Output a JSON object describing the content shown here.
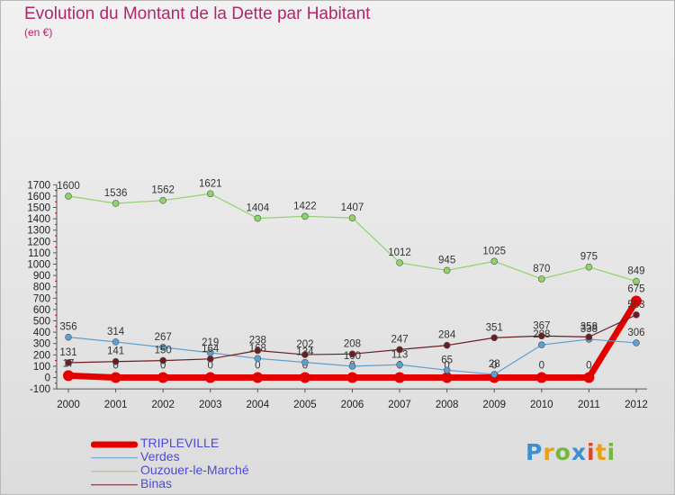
{
  "title": "Evolution du Montant de la Dette par Habitant",
  "unit": "(en €)",
  "logo_text": "Proxiti",
  "chart_data": {
    "type": "line",
    "title": "Evolution du Montant de la Dette par Habitant",
    "subtitle": "(en €)",
    "xlabel": "",
    "ylabel": "",
    "x": [
      "2000",
      "2001",
      "2002",
      "2003",
      "2004",
      "2005",
      "2006",
      "2007",
      "2008",
      "2009",
      "2010",
      "2011",
      "2012"
    ],
    "ylim": [
      -100,
      1700
    ],
    "yticks": [
      -100,
      0,
      100,
      200,
      300,
      400,
      500,
      600,
      700,
      800,
      900,
      1000,
      1100,
      1200,
      1300,
      1400,
      1500,
      1600,
      1700
    ],
    "grid": false,
    "legend_position": "bottom-left",
    "series": [
      {
        "name": "TRIPLEVILLE",
        "color": "#e50000",
        "values": [
          17,
          0,
          0,
          0,
          0,
          0,
          0,
          0,
          0,
          0,
          0,
          0,
          675
        ]
      },
      {
        "name": "Verdes",
        "color": "#5e9fd1",
        "values": [
          356,
          314,
          267,
          219,
          168,
          134,
          100,
          113,
          65,
          28,
          288,
          338,
          306
        ]
      },
      {
        "name": "Ouzouer-le-Marché",
        "color": "#8fd36a",
        "values": [
          1600,
          1536,
          1562,
          1621,
          1404,
          1422,
          1407,
          1012,
          945,
          1025,
          870,
          975,
          849
        ]
      },
      {
        "name": "Binas",
        "color": "#6b1d24",
        "values": [
          131,
          141,
          150,
          164,
          238,
          202,
          208,
          247,
          284,
          351,
          367,
          358,
          553
        ]
      }
    ]
  }
}
